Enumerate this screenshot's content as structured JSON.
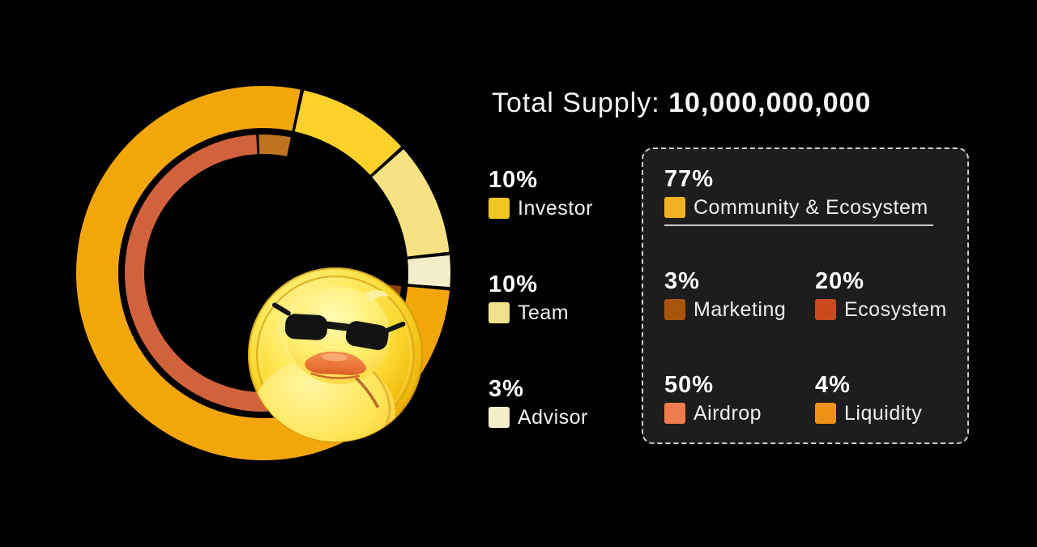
{
  "title": {
    "prefix": "Total Supply: ",
    "value": "10,000,000,000"
  },
  "legend_left": [
    {
      "pct": "10%",
      "label": "Investor",
      "color": "#F2C622"
    },
    {
      "pct": "10%",
      "label": "Team",
      "color": "#EFE28A"
    },
    {
      "pct": "3%",
      "label": "Advisor",
      "color": "#F3EDC8"
    }
  ],
  "info_box": {
    "header": {
      "pct": "77%",
      "label": "Community & Ecosystem",
      "color": "#F0B125"
    },
    "items": [
      {
        "pct": "3%",
        "label": "Marketing",
        "color": "#A9540E"
      },
      {
        "pct": "20%",
        "label": "Ecosystem",
        "color": "#C94B1D"
      },
      {
        "pct": "50%",
        "label": "Airdrop",
        "color": "#EF7C4D"
      },
      {
        "pct": "4%",
        "label": "Liquidity",
        "color": "#EE9114"
      }
    ]
  },
  "colors": {
    "background": "#000000",
    "box_background": "#1d1d1e",
    "box_border": "#cfcfcf",
    "text": "#f5f5f5"
  },
  "chart_data": {
    "type": "pie",
    "subtype": "double-ring-donut",
    "unit": "percent",
    "total_supply": "10,000,000,000",
    "rings": [
      {
        "name": "outer-allocation",
        "start_deg": 12,
        "segments": [
          {
            "label": "Investor",
            "value": 10,
            "color": "#FFD22B"
          },
          {
            "label": "Team",
            "value": 10,
            "color": "#F6E282"
          },
          {
            "label": "Advisor",
            "value": 3,
            "color": "#F4EDC9"
          },
          {
            "label": "Community & Ecosystem",
            "value": 77,
            "color": "#F3A60A"
          }
        ]
      },
      {
        "name": "inner-community-breakdown",
        "start_deg": 94.8,
        "segments": [
          {
            "label": "Marketing",
            "value": 3,
            "color": "#8E3F0D"
          },
          {
            "label": "Ecosystem",
            "value": 20,
            "color": "#BC431F"
          },
          {
            "label": "Airdrop",
            "value": 50,
            "color": "#D2623B"
          },
          {
            "label": "Liquidity",
            "value": 4,
            "color": "#BE7420"
          }
        ]
      }
    ],
    "legend_position": "right",
    "center_graphic": "duck-coin"
  }
}
